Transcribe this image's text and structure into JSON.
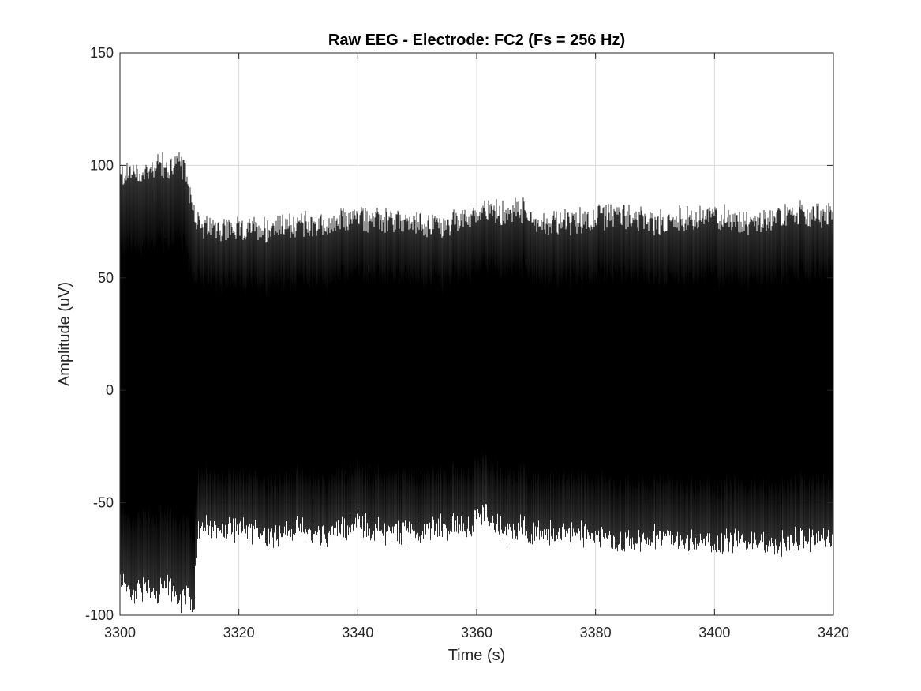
{
  "chart_data": {
    "type": "line",
    "title": "Raw EEG - Electrode: FC2 (Fs = 256 Hz)",
    "xlabel": "Time (s)",
    "ylabel": "Amplitude (uV)",
    "xlim": [
      3300,
      3420
    ],
    "ylim": [
      -100,
      150
    ],
    "xticks": [
      3300,
      3320,
      3340,
      3360,
      3380,
      3400,
      3420
    ],
    "yticks": [
      -100,
      -50,
      0,
      50,
      100,
      150
    ],
    "xtick_labels": [
      "3300",
      "3320",
      "3340",
      "3360",
      "3380",
      "3400",
      "3420"
    ],
    "ytick_labels": [
      "-100",
      "-50",
      "0",
      "50",
      "100",
      "150"
    ],
    "grid": true,
    "legend": "none",
    "series": [
      {
        "color": "#000000",
        "sampling_rate_hz": 256,
        "envelope": {
          "t": [
            3300,
            3302,
            3304,
            3306,
            3308,
            3310,
            3311,
            3312.5,
            3313,
            3314,
            3316,
            3320,
            3325,
            3330,
            3335,
            3340,
            3345,
            3350,
            3355,
            3360,
            3361,
            3365,
            3367,
            3370,
            3375,
            3380,
            3385,
            3390,
            3395,
            3400,
            3405,
            3410,
            3415,
            3420
          ],
          "upper": [
            97,
            99,
            98,
            103,
            100,
            104,
            99,
            82,
            76,
            73,
            74,
            73,
            74,
            76,
            75,
            79,
            77,
            76,
            75,
            80,
            84,
            79,
            83,
            77,
            76,
            79,
            80,
            76,
            78,
            80,
            77,
            79,
            80,
            79
          ],
          "lower": [
            -87,
            -93,
            -90,
            -94,
            -88,
            -96,
            -93,
            -96,
            -62,
            -63,
            -65,
            -64,
            -66,
            -64,
            -67,
            -60,
            -66,
            -64,
            -63,
            -61,
            -57,
            -64,
            -63,
            -66,
            -65,
            -68,
            -71,
            -67,
            -69,
            -70,
            -68,
            -71,
            -68,
            -70
          ]
        }
      }
    ]
  }
}
